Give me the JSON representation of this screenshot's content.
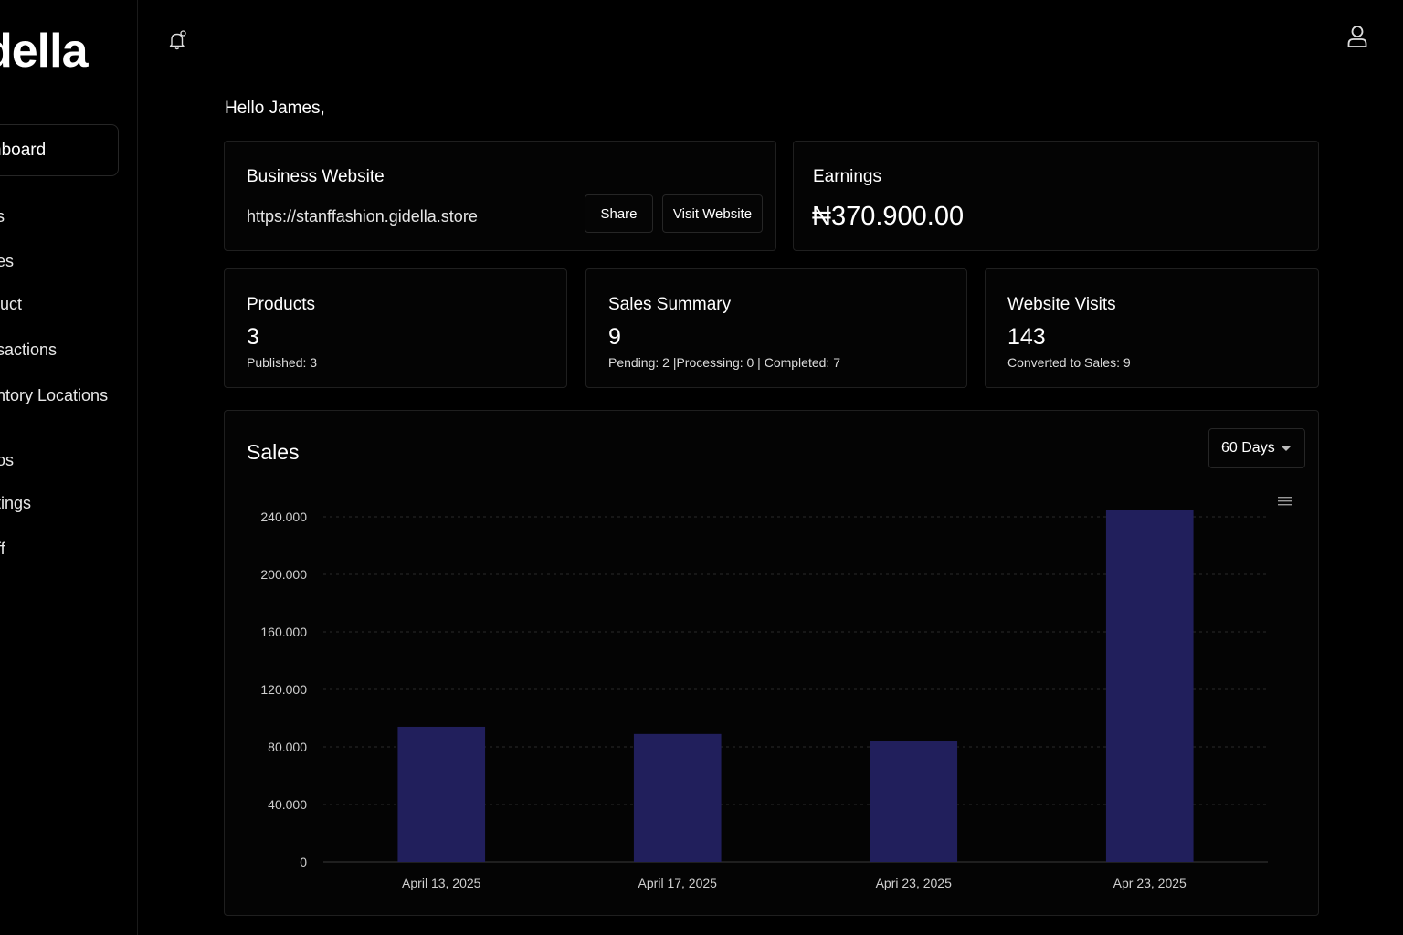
{
  "sidebar": {
    "logo": "della",
    "active_item": "hboard",
    "items": [
      "s",
      "es",
      "luct",
      "sactions",
      "ntory Locations",
      "os",
      "tings",
      "ff"
    ]
  },
  "header": {
    "bell_icon": "bell-icon",
    "user_icon": "user-icon"
  },
  "greeting": "Hello James,",
  "business": {
    "title": "Business Website",
    "url": "https://stanffashion.gidella.store",
    "share_label": "Share",
    "visit_label": "Visit Website"
  },
  "earnings": {
    "title": "Earnings",
    "value": "₦370.900.00"
  },
  "products": {
    "title": "Products",
    "value": "3",
    "sub": "Published: 3"
  },
  "sales_summary": {
    "title": "Sales Summary",
    "value": "9",
    "sub": "Pending: 2 |Processing: 0 | Completed: 7"
  },
  "visits": {
    "title": "Website Visits",
    "value": "143",
    "sub": "Converted to Sales: 9"
  },
  "sales_panel": {
    "title": "Sales",
    "range_label": "60 Days"
  },
  "colors": {
    "bar": "#211f5c",
    "grid": "#2a2a2a",
    "card_border": "#1f1f1f"
  },
  "chart_data": {
    "type": "bar",
    "title": "Sales",
    "categories": [
      "April 13, 2025",
      "April 17, 2025",
      "Apri 23, 2025",
      "Apr 23, 2025"
    ],
    "values": [
      94000,
      89000,
      84000,
      245000
    ],
    "ylim": [
      0,
      240000
    ],
    "yticks": [
      0,
      40000,
      80000,
      120000,
      160000,
      200000,
      240000
    ],
    "ytick_labels": [
      "0",
      "40.000",
      "80.000",
      "120.000",
      "160.000",
      "200.000",
      "240.000"
    ],
    "grid": true
  }
}
